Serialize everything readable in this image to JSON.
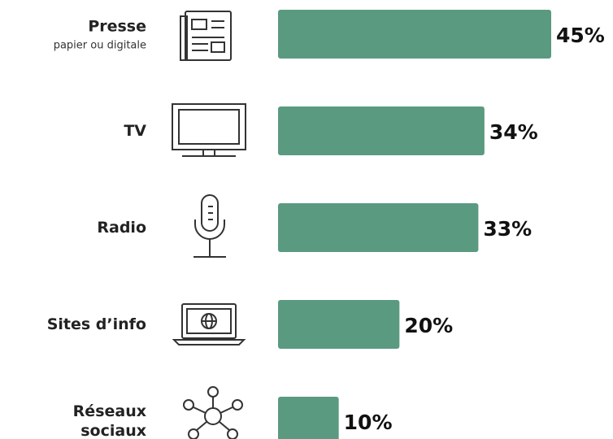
{
  "chart_data": {
    "type": "bar",
    "categories": [
      "Presse",
      "TV",
      "Radio",
      "Sites d’info",
      "Réseaux sociaux"
    ],
    "category_sublabels": [
      "papier ou digitale",
      null,
      null,
      null,
      null
    ],
    "values": [
      45,
      34,
      33,
      20,
      10
    ],
    "value_labels": [
      "45%",
      "34%",
      "33%",
      "20%",
      "10%"
    ],
    "color": "#5a9a80"
  }
}
